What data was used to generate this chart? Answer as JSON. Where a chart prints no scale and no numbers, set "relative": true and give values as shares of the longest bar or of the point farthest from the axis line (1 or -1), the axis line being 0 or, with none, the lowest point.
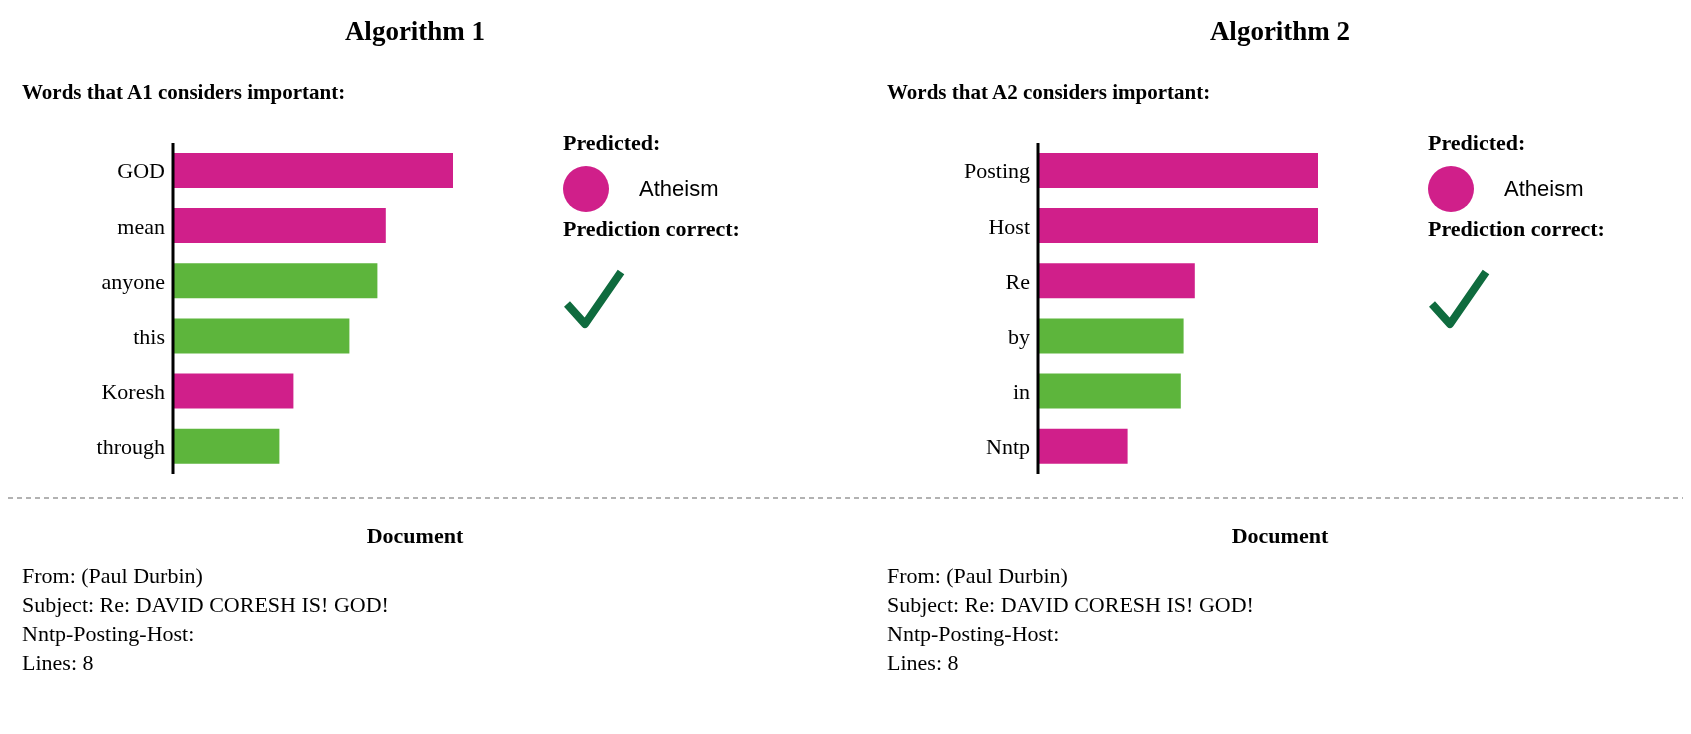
{
  "chart_data": [
    {
      "type": "bar",
      "title": "Algorithm 1",
      "subtitle": "Words that A1 considers important:",
      "orientation": "horizontal",
      "relative": true,
      "categories": [
        "GOD",
        "mean",
        "anyone",
        "this",
        "Koresh",
        "through"
      ],
      "values": [
        1,
        0.76,
        0.73,
        0.63,
        0.43,
        0.38
      ],
      "colors": [
        "#d01f8a",
        "#d01f8a",
        "#5db53c",
        "#5db53c",
        "#d01f8a",
        "#5db53c"
      ]
    },
    {
      "type": "other",
      "title": "Predicted:",
      "color": "#d01f8a",
      "annotations": [
        "Atheism",
        "Prediction correct:"
      ]
    },
    {
      "type": "other",
      "title": "Document",
      "annotations": [
        "From: (Paul Durbin)",
        "Subject: Re: DAVID CORESH IS! GOD!",
        "Nntp-Posting-Host:",
        "Lines: 8"
      ]
    },
    {
      "type": "bar",
      "title": "Algorithm 2",
      "subtitle": "Words that A2 considers important:",
      "orientation": "horizontal",
      "relative": true,
      "categories": [
        "Posting",
        "Host",
        "Re",
        "by",
        "in",
        "Nntp"
      ],
      "values": [
        1,
        1,
        0.56,
        0.52,
        0.51,
        0.32
      ],
      "colors": [
        "#d01f8a",
        "#d01f8a",
        "#d01f8a",
        "#5db53c",
        "#5db53c",
        "#d01f8a"
      ]
    },
    {
      "type": "other",
      "title": "Predicted:",
      "color": "#d01f8a",
      "annotations": [
        "Atheism",
        "Prediction correct:"
      ]
    },
    {
      "type": "other",
      "title": "Document",
      "annotations": [
        "From: (Paul Durbin)",
        "Subject: Re: DAVID CORESH IS! GOD!",
        "Nntp-Posting-Host:",
        "Lines: 8"
      ]
    }
  ]
}
